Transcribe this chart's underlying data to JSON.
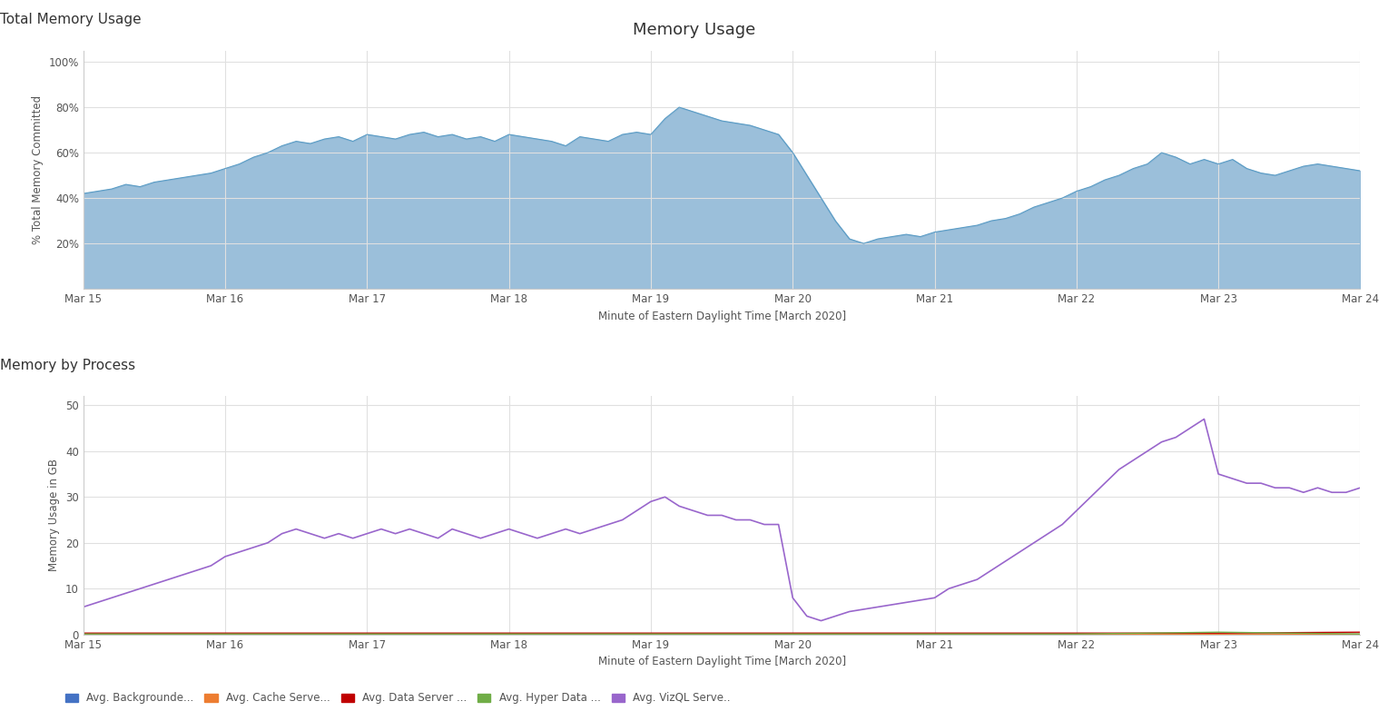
{
  "title": "Memory Usage",
  "top_title": "Total Memory Usage",
  "bottom_title": "Memory by Process",
  "xlabel": "Minute of Eastern Daylight Time [March 2020]",
  "top_ylabel": "% Total Memory Committed",
  "bottom_ylabel": "Memory Usage in GB",
  "x_ticks": [
    "Mar 15",
    "Mar 16",
    "Mar 17",
    "Mar 18",
    "Mar 19",
    "Mar 20",
    "Mar 21",
    "Mar 22",
    "Mar 23",
    "Mar 24"
  ],
  "x_tick_positions": [
    0,
    1,
    2,
    3,
    4,
    5,
    6,
    7,
    8,
    9
  ],
  "top_yticks": [
    "",
    "20%",
    "40%",
    "60%",
    "80%",
    "100%"
  ],
  "top_ytick_vals": [
    0,
    20,
    40,
    60,
    80,
    100
  ],
  "bottom_yticks": [
    0,
    10,
    20,
    30,
    40,
    50
  ],
  "fill_color": "#8ab4d4",
  "fill_alpha": 0.85,
  "line_color_top": "#5a9cc5",
  "bg_color": "#ffffff",
  "grid_color": "#e0e0e0",
  "legend_labels": [
    "Avg. Backgrounde...",
    "Avg. Cache Serve...",
    "Avg. Data Server ...",
    "Avg. Hyper Data ...",
    "Avg. VizQL Serve.."
  ],
  "legend_colors": [
    "#4472c4",
    "#ed7d31",
    "#c00000",
    "#70ad47",
    "#9966cc"
  ],
  "top_data_x": [
    0,
    0.1,
    0.2,
    0.3,
    0.4,
    0.5,
    0.6,
    0.7,
    0.8,
    0.9,
    1.0,
    1.1,
    1.2,
    1.3,
    1.4,
    1.5,
    1.6,
    1.7,
    1.8,
    1.9,
    2.0,
    2.1,
    2.2,
    2.3,
    2.4,
    2.5,
    2.6,
    2.7,
    2.8,
    2.9,
    3.0,
    3.1,
    3.2,
    3.3,
    3.4,
    3.5,
    3.6,
    3.7,
    3.8,
    3.9,
    4.0,
    4.1,
    4.2,
    4.3,
    4.4,
    4.5,
    4.6,
    4.7,
    4.8,
    4.9,
    5.0,
    5.1,
    5.2,
    5.3,
    5.4,
    5.5,
    5.6,
    5.7,
    5.8,
    5.9,
    6.0,
    6.1,
    6.2,
    6.3,
    6.4,
    6.5,
    6.6,
    6.7,
    6.8,
    6.9,
    7.0,
    7.1,
    7.2,
    7.3,
    7.4,
    7.5,
    7.6,
    7.7,
    7.8,
    7.9,
    8.0,
    8.1,
    8.2,
    8.3,
    8.4,
    8.5,
    8.6,
    8.7,
    8.8,
    8.9,
    9.0
  ],
  "top_data_y": [
    42,
    43,
    44,
    46,
    45,
    47,
    48,
    49,
    50,
    51,
    53,
    55,
    58,
    60,
    63,
    65,
    64,
    66,
    67,
    65,
    68,
    67,
    66,
    68,
    69,
    67,
    68,
    66,
    67,
    65,
    68,
    67,
    66,
    65,
    63,
    67,
    66,
    65,
    68,
    69,
    68,
    75,
    80,
    78,
    76,
    74,
    73,
    72,
    70,
    68,
    60,
    50,
    40,
    30,
    22,
    20,
    22,
    23,
    24,
    23,
    25,
    26,
    27,
    28,
    30,
    31,
    33,
    36,
    38,
    40,
    43,
    45,
    48,
    50,
    53,
    55,
    60,
    58,
    55,
    57,
    55,
    57,
    53,
    51,
    50,
    52,
    54,
    55,
    54,
    53,
    52
  ],
  "vizql_x": [
    0,
    0.1,
    0.2,
    0.3,
    0.4,
    0.5,
    0.6,
    0.7,
    0.8,
    0.9,
    1.0,
    1.1,
    1.2,
    1.3,
    1.4,
    1.5,
    1.6,
    1.7,
    1.8,
    1.9,
    2.0,
    2.1,
    2.2,
    2.3,
    2.4,
    2.5,
    2.6,
    2.7,
    2.8,
    2.9,
    3.0,
    3.1,
    3.2,
    3.3,
    3.4,
    3.5,
    3.6,
    3.7,
    3.8,
    3.9,
    4.0,
    4.1,
    4.2,
    4.3,
    4.4,
    4.5,
    4.6,
    4.7,
    4.8,
    4.9,
    5.0,
    5.1,
    5.2,
    5.3,
    5.4,
    5.5,
    5.6,
    5.7,
    5.8,
    5.9,
    6.0,
    6.1,
    6.2,
    6.3,
    6.4,
    6.5,
    6.6,
    6.7,
    6.8,
    6.9,
    7.0,
    7.1,
    7.2,
    7.3,
    7.4,
    7.5,
    7.6,
    7.7,
    7.8,
    7.9,
    8.0,
    8.1,
    8.2,
    8.3,
    8.4,
    8.5,
    8.6,
    8.7,
    8.8,
    8.9,
    9.0
  ],
  "vizql_y": [
    6,
    7,
    8,
    9,
    10,
    11,
    12,
    13,
    14,
    15,
    17,
    18,
    19,
    20,
    22,
    23,
    22,
    21,
    22,
    21,
    22,
    23,
    22,
    23,
    22,
    21,
    23,
    22,
    21,
    22,
    23,
    22,
    21,
    22,
    23,
    22,
    23,
    24,
    25,
    27,
    29,
    30,
    28,
    27,
    26,
    26,
    25,
    25,
    24,
    24,
    8,
    4,
    3,
    4,
    5,
    5.5,
    6,
    6.5,
    7,
    7.5,
    8,
    10,
    11,
    12,
    14,
    16,
    18,
    20,
    22,
    24,
    27,
    30,
    33,
    36,
    38,
    40,
    42,
    43,
    45,
    47,
    35,
    34,
    33,
    33,
    32,
    32,
    31,
    32,
    31,
    31,
    32
  ],
  "bg_x": [
    0,
    1,
    2,
    3,
    4,
    5,
    6,
    7,
    8,
    9
  ],
  "bg_y": [
    0.2,
    0.2,
    0.2,
    0.2,
    0.2,
    0.2,
    0.2,
    0.2,
    0.2,
    0.2
  ],
  "cache_x": [
    0,
    1,
    2,
    3,
    4,
    5,
    6,
    7,
    8,
    9
  ],
  "cache_y": [
    0.1,
    0.1,
    0.1,
    0.1,
    0.1,
    0.1,
    0.1,
    0.1,
    0.1,
    0.1
  ],
  "data_server_x": [
    0,
    1,
    2,
    3,
    4,
    5,
    6,
    7,
    8,
    9
  ],
  "data_server_y": [
    0.3,
    0.3,
    0.3,
    0.3,
    0.3,
    0.3,
    0.3,
    0.3,
    0.3,
    0.5
  ],
  "hyper_x": [
    0,
    1,
    2,
    3,
    4,
    5,
    6,
    7,
    8,
    9
  ],
  "hyper_y": [
    0.1,
    0.1,
    0.1,
    0.1,
    0.1,
    0.1,
    0.1,
    0.1,
    0.5,
    0.1
  ]
}
